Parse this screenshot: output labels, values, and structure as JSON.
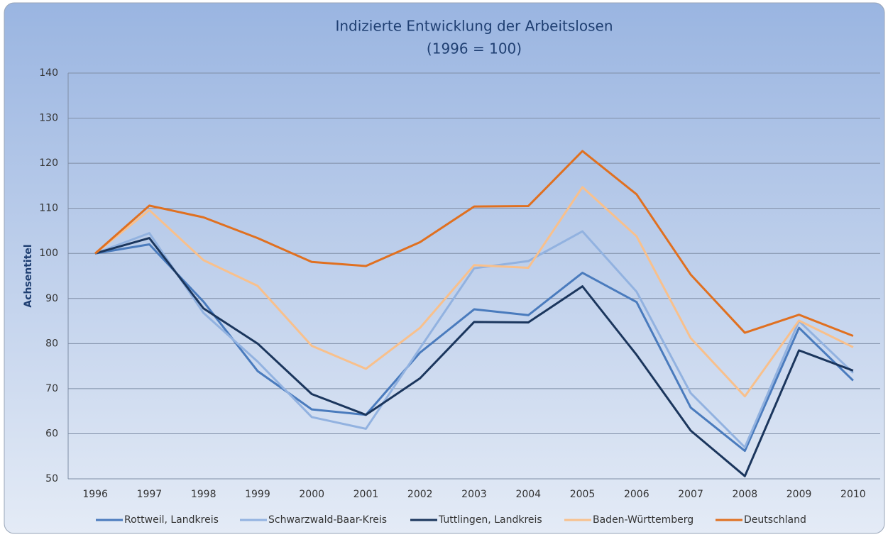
{
  "chart_data": {
    "type": "line",
    "title": "Indizierte Entwicklung der Arbeitslosen",
    "subtitle": "(1996 = 100)",
    "y_label": "Achsentitel",
    "categories": [
      "1996",
      "1997",
      "1998",
      "1999",
      "2000",
      "2001",
      "2002",
      "2003",
      "2004",
      "2005",
      "2006",
      "2007",
      "2008",
      "2009",
      "2010"
    ],
    "series": [
      {
        "name": "Rottweil, Landkreis",
        "color": "#4a7bbd",
        "values": [
          100,
          102,
          89.3,
          73.9,
          65.4,
          64.2,
          78,
          87.6,
          86.3,
          95.7,
          89.2,
          65.8,
          56.2,
          83.5,
          71.8
        ]
      },
      {
        "name": "Schwarzwald-Baar-Kreis",
        "color": "#92b2e0",
        "values": [
          100,
          104.5,
          86.8,
          76,
          63.7,
          61.1,
          79,
          96.7,
          98.3,
          104.9,
          91.5,
          69,
          57,
          85,
          73.5
        ]
      },
      {
        "name": "Tuttlingen, Landkreis",
        "color": "#1b365d",
        "values": [
          100,
          103.4,
          87.8,
          80,
          68.8,
          64.2,
          72.3,
          84.8,
          84.7,
          92.7,
          77.5,
          60.7,
          50.6,
          78.5,
          74
        ]
      },
      {
        "name": "Baden-Württemberg",
        "color": "#f8c08c",
        "values": [
          100,
          109.6,
          98.5,
          92.8,
          79.5,
          74.4,
          83.5,
          97.4,
          96.8,
          114.7,
          103.8,
          81.2,
          68.3,
          85.1,
          79.2
        ]
      },
      {
        "name": "Deutschland",
        "color": "#e07020",
        "values": [
          100,
          110.6,
          108,
          103.4,
          98.1,
          97.2,
          102.5,
          110.4,
          110.5,
          122.7,
          113.1,
          95.3,
          82.4,
          86.4,
          81.7
        ]
      }
    ],
    "ylim": [
      50,
      140
    ],
    "yticks": [
      50,
      60,
      70,
      80,
      90,
      100,
      110,
      120,
      130,
      140
    ],
    "grid": true,
    "legend": "bottom"
  }
}
